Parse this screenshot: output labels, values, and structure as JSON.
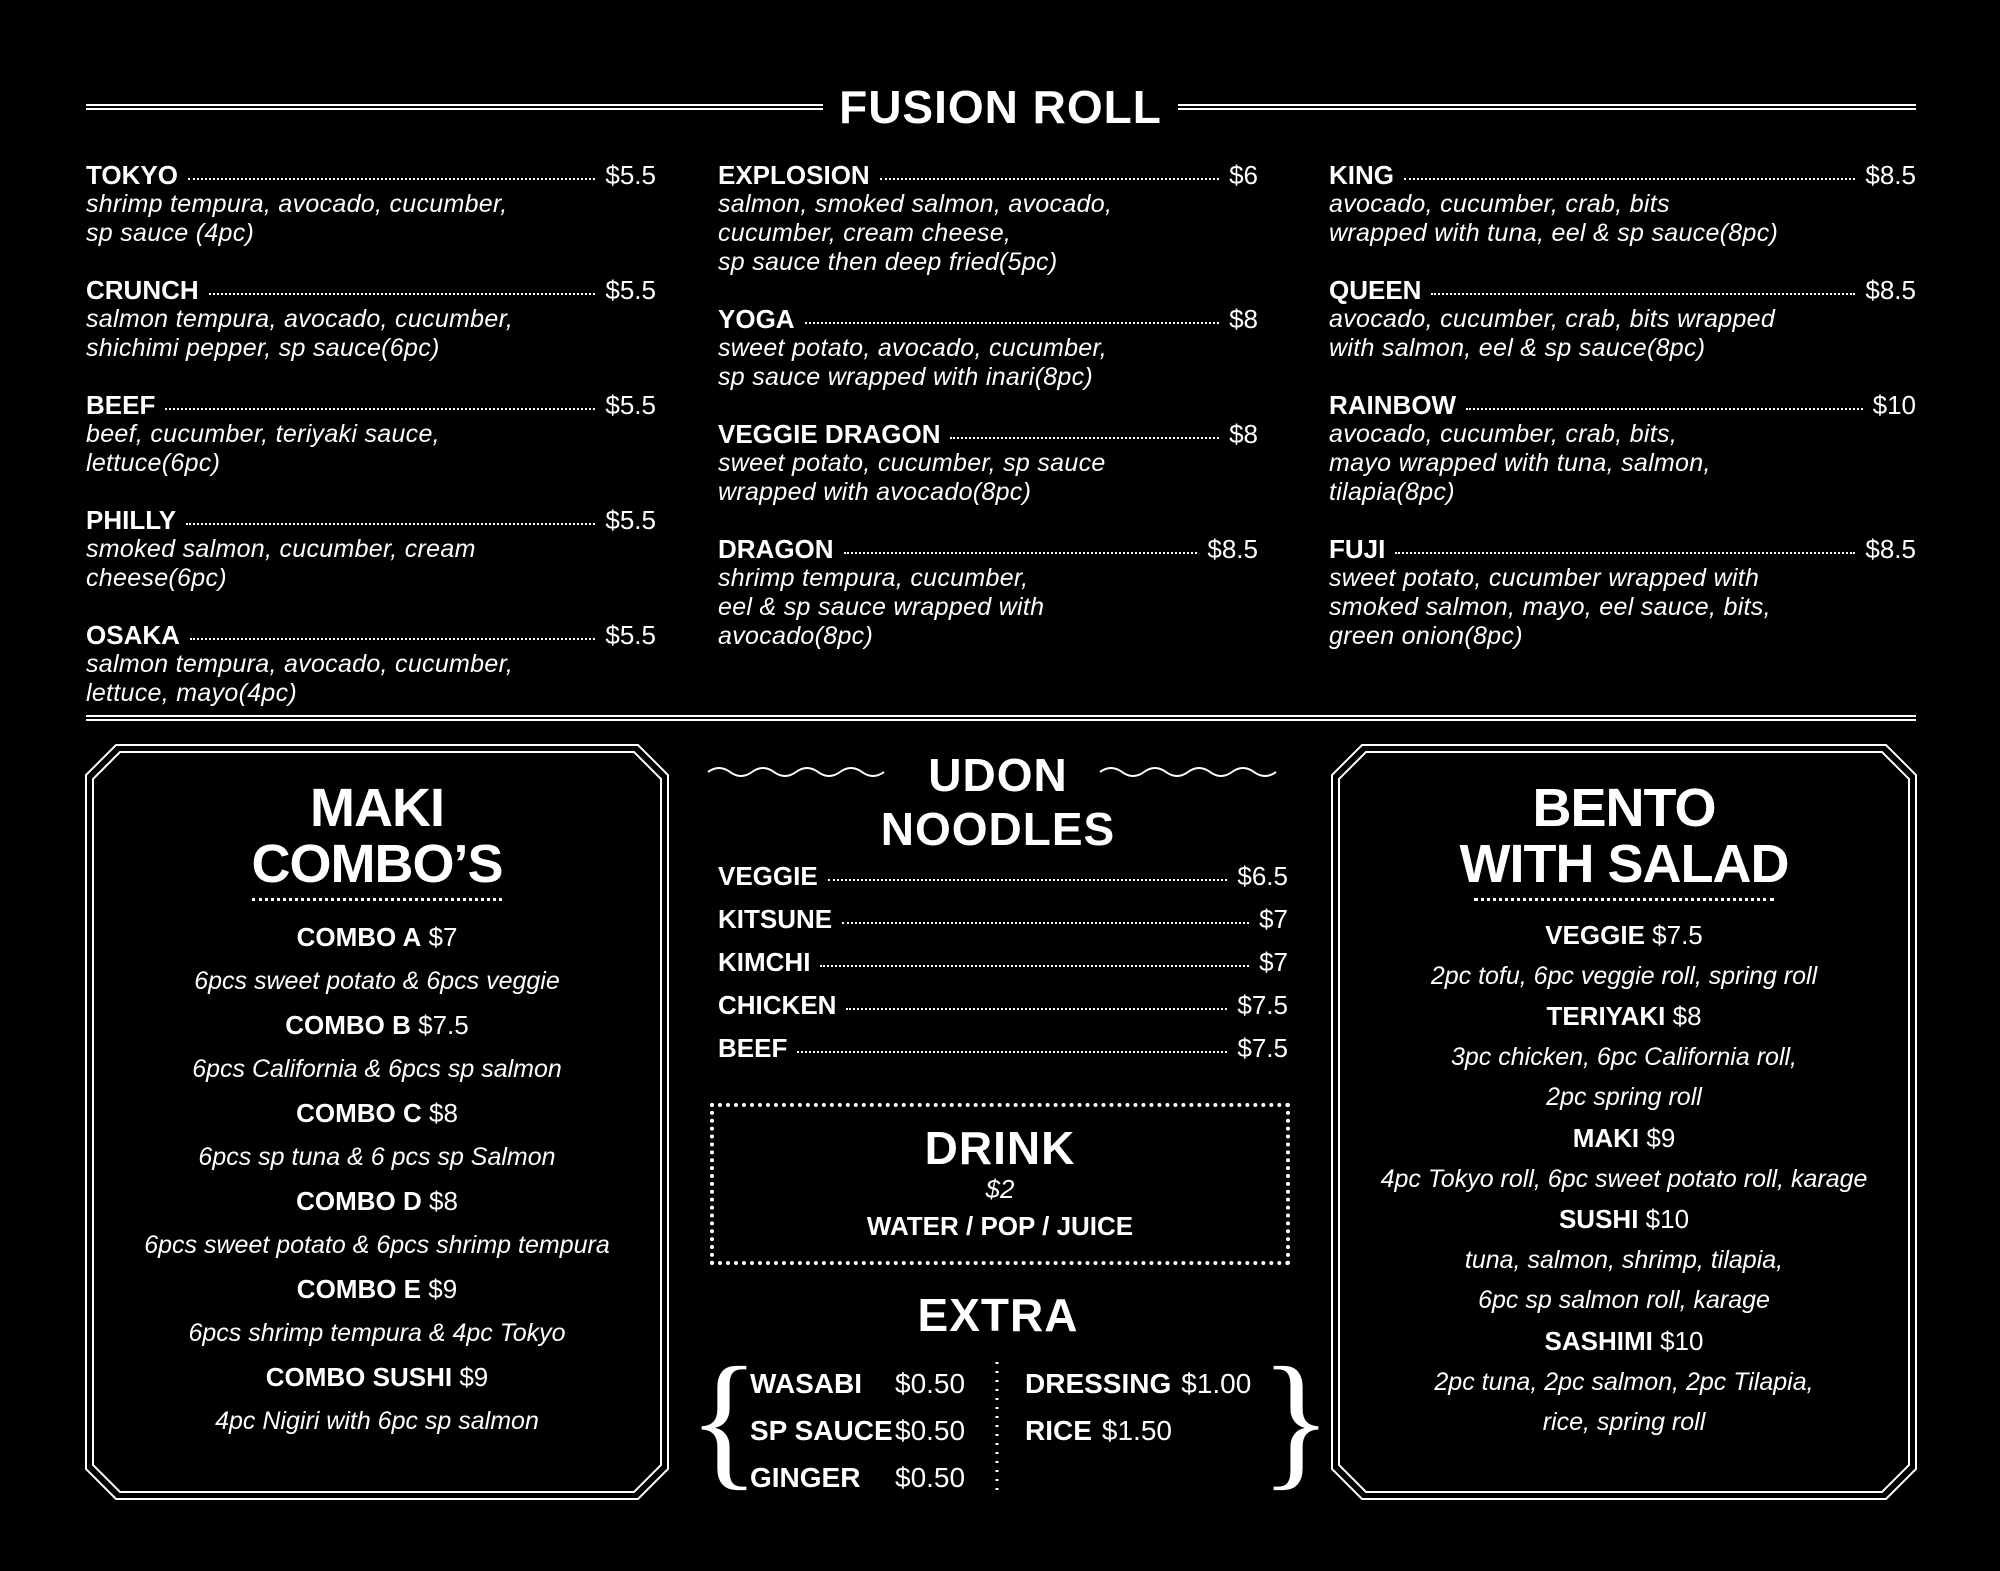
{
  "fusion": {
    "title": "FUSION ROLL",
    "columns": [
      [
        {
          "name": "TOKYO",
          "price": "$5.5",
          "desc": "shrimp tempura, avocado, cucumber,\nsp sauce (4pc)"
        },
        {
          "name": "CRUNCH",
          "price": "$5.5",
          "desc": "salmon tempura, avocado, cucumber,\nshichimi pepper, sp sauce(6pc)"
        },
        {
          "name": "BEEF",
          "price": "$5.5",
          "desc": "beef, cucumber, teriyaki sauce,\nlettuce(6pc)"
        },
        {
          "name": "PHILLY",
          "price": "$5.5",
          "desc": "smoked salmon, cucumber, cream\ncheese(6pc)"
        },
        {
          "name": "OSAKA",
          "price": "$5.5",
          "desc": "salmon tempura, avocado, cucumber,\nlettuce, mayo(4pc)"
        }
      ],
      [
        {
          "name": "EXPLOSION",
          "price": "$6",
          "desc": "salmon, smoked salmon, avocado,\ncucumber, cream cheese,\nsp sauce then deep fried(5pc)"
        },
        {
          "name": "YOGA",
          "price": "$8",
          "desc": "sweet potato, avocado, cucumber,\nsp sauce wrapped with inari(8pc)"
        },
        {
          "name": "VEGGIE DRAGON",
          "price": "$8",
          "desc": "sweet potato, cucumber, sp sauce\nwrapped with avocado(8pc)"
        },
        {
          "name": "DRAGON",
          "price": "$8.5",
          "desc": "shrimp tempura, cucumber,\neel & sp sauce wrapped with\navocado(8pc)"
        }
      ],
      [
        {
          "name": "KING",
          "price": "$8.5",
          "desc": "avocado, cucumber, crab, bits\nwrapped with tuna, eel & sp sauce(8pc)"
        },
        {
          "name": "QUEEN",
          "price": "$8.5",
          "desc": "avocado, cucumber, crab, bits wrapped\nwith salmon, eel & sp sauce(8pc)"
        },
        {
          "name": "RAINBOW",
          "price": "$10",
          "desc": "avocado, cucumber, crab, bits,\nmayo wrapped with tuna, salmon,\ntilapia(8pc)"
        },
        {
          "name": "FUJI",
          "price": "$8.5",
          "desc": "sweet potato, cucumber wrapped with\nsmoked salmon, mayo, eel sauce, bits,\ngreen onion(8pc)"
        }
      ]
    ]
  },
  "maki": {
    "title_line1": "MAKI",
    "title_line2": "COMBO’S",
    "items": [
      {
        "name": "COMBO A",
        "price": "$7",
        "desc": "6pcs sweet potato & 6pcs veggie"
      },
      {
        "name": "COMBO B",
        "price": "$7.5",
        "desc": "6pcs California & 6pcs sp salmon"
      },
      {
        "name": "COMBO C",
        "price": "$8",
        "desc": "6pcs sp tuna & 6 pcs sp Salmon"
      },
      {
        "name": "COMBO D",
        "price": "$8",
        "desc": "6pcs sweet potato & 6pcs shrimp tempura"
      },
      {
        "name": "COMBO E",
        "price": "$9",
        "desc": "6pcs shrimp tempura & 4pc Tokyo"
      },
      {
        "name": "COMBO SUSHI",
        "price": "$9",
        "desc": "4pc Nigiri with 6pc sp salmon"
      }
    ]
  },
  "udon": {
    "title_line1": "UDON",
    "title_line2": "NOODLES",
    "items": [
      {
        "name": "VEGGIE",
        "price": "$6.5"
      },
      {
        "name": "KITSUNE",
        "price": "$7"
      },
      {
        "name": "KIMCHI",
        "price": "$7"
      },
      {
        "name": "CHICKEN",
        "price": "$7.5"
      },
      {
        "name": "BEEF",
        "price": "$7.5"
      }
    ]
  },
  "drink": {
    "title": "DRINK",
    "price": "$2",
    "options": "WATER / POP / JUICE"
  },
  "extra": {
    "title": "EXTRA",
    "left": [
      {
        "name": "WASABI",
        "price": "$0.50"
      },
      {
        "name": "SP SAUCE",
        "price": "$0.50"
      },
      {
        "name": "GINGER",
        "price": "$0.50"
      }
    ],
    "right": [
      {
        "name": "DRESSING",
        "price": "$1.00"
      },
      {
        "name": "RICE",
        "price": "$1.50"
      }
    ]
  },
  "bento": {
    "title_line1": "BENTO",
    "title_line2": "WITH SALAD",
    "items": [
      {
        "name": "VEGGIE",
        "price": "$7.5",
        "desc": [
          "2pc tofu, 6pc veggie roll, spring roll"
        ]
      },
      {
        "name": "TERIYAKI",
        "price": "$8",
        "desc": [
          "3pc chicken, 6pc California roll,",
          "2pc spring roll"
        ]
      },
      {
        "name": "MAKI",
        "price": "$9",
        "desc": [
          "4pc Tokyo roll, 6pc sweet potato roll, karage"
        ]
      },
      {
        "name": "SUSHI",
        "price": "$10",
        "desc": [
          "tuna, salmon, shrimp, tilapia,",
          "6pc sp salmon roll, karage"
        ]
      },
      {
        "name": "SASHIMI",
        "price": "$10",
        "desc": [
          "2pc tuna, 2pc salmon, 2pc Tilapia,",
          "rice, spring roll"
        ]
      }
    ]
  },
  "colors": {
    "background": "#000000",
    "text": "#ffffff"
  }
}
